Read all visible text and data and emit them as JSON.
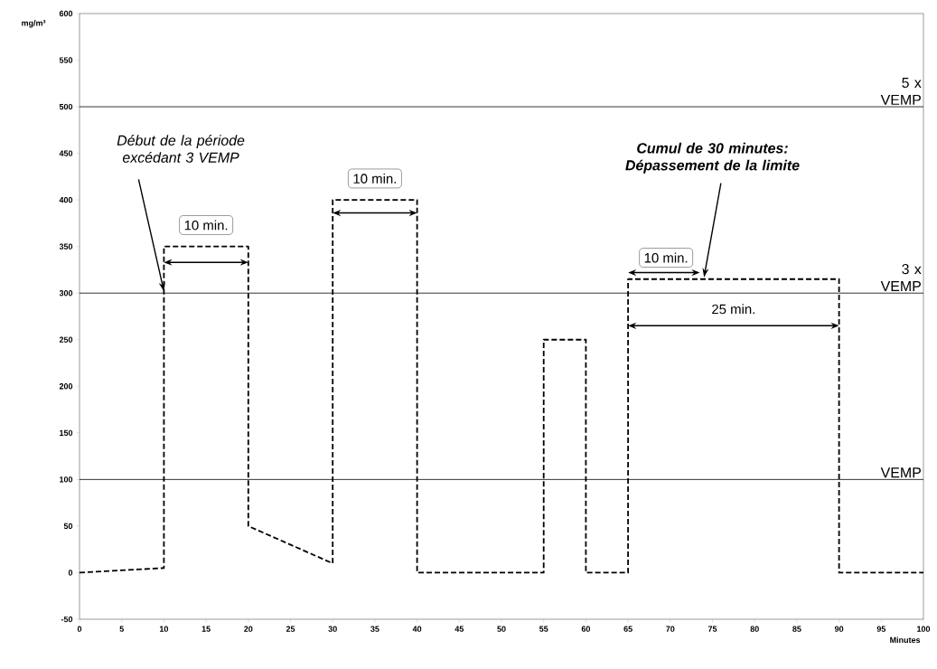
{
  "chart_data": {
    "type": "line",
    "xlabel": "Minutes",
    "ylabel": "mg/m³",
    "x": [
      0,
      10,
      10,
      20,
      20,
      30,
      30,
      40,
      40,
      55,
      55,
      60,
      60,
      65,
      65,
      90,
      90,
      100
    ],
    "series": [
      {
        "color": "#000000",
        "values": [
          0,
          5,
          350,
          350,
          50,
          10,
          400,
          400,
          0,
          0,
          250,
          250,
          0,
          0,
          315,
          315,
          0,
          0
        ]
      }
    ],
    "line_style": "dashed",
    "marker": "none",
    "grid": false,
    "xlim": [
      0,
      100
    ],
    "xticks": [
      0,
      5,
      10,
      15,
      20,
      25,
      30,
      35,
      40,
      45,
      50,
      55,
      60,
      65,
      70,
      75,
      80,
      85,
      90,
      95,
      100
    ],
    "ylim": [
      -50,
      600
    ],
    "yticks": [
      -50,
      0,
      50,
      100,
      150,
      200,
      250,
      300,
      350,
      400,
      450,
      500,
      550,
      600
    ],
    "ref_lines": [
      {
        "axis": "y",
        "value": 100,
        "label": "VEMP"
      },
      {
        "axis": "y",
        "value": 300,
        "label": "3 x VEMP"
      },
      {
        "axis": "y",
        "value": 500,
        "label": "5 x VEMP"
      }
    ],
    "annotations": [
      {
        "text": "Début de la période excédant 3 VEMP",
        "x": 10,
        "y": 300
      },
      {
        "text": "10 min.",
        "x": 15,
        "y": 350
      },
      {
        "text": "10 min.",
        "x": 35,
        "y": 400
      },
      {
        "text": "10 min.",
        "x": 69.5,
        "y": 315
      },
      "25 min.",
      {
        "text": "Cumul de 30 minutes: Dépassement de la limite",
        "x": 74,
        "y": 315
      }
    ]
  }
}
